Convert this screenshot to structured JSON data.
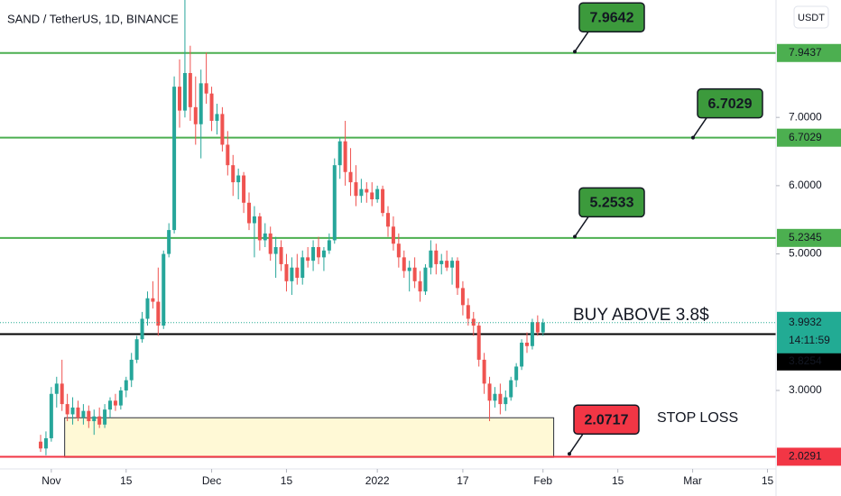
{
  "chart_data": {
    "type": "candlestick",
    "title": "SAND / TetherUS, 1D, BINANCE",
    "currency": "USDT",
    "x": [
      -2,
      -1,
      0,
      1,
      2,
      3,
      4,
      5,
      6,
      7,
      8,
      9,
      10,
      11,
      12,
      13,
      14,
      15,
      16,
      17,
      18,
      19,
      20,
      21,
      22,
      23,
      24,
      25,
      26,
      27,
      28,
      29,
      30,
      31,
      32,
      33,
      34,
      35,
      36,
      37,
      38,
      39,
      40,
      41,
      42,
      43,
      44,
      45,
      46,
      47,
      48,
      49,
      50,
      51,
      52,
      53,
      54,
      55,
      56,
      57,
      58,
      59,
      60,
      61,
      62,
      63,
      64,
      65,
      66,
      67,
      68,
      69,
      70,
      71,
      72,
      73,
      74,
      75,
      76,
      77,
      78,
      79,
      80,
      81,
      82,
      83,
      84,
      85,
      86,
      87,
      88,
      89,
      90,
      91,
      92
    ],
    "open": [
      2.25,
      2.15,
      2.3,
      2.95,
      3.1,
      2.8,
      2.65,
      2.75,
      2.6,
      2.7,
      2.55,
      2.62,
      2.5,
      2.72,
      2.85,
      2.78,
      3.0,
      3.15,
      3.45,
      3.75,
      4.05,
      4.35,
      4.3,
      3.95,
      5.0,
      5.35,
      7.45,
      7.1,
      7.65,
      7.15,
      6.9,
      7.5,
      7.35,
      6.95,
      7.05,
      6.6,
      6.3,
      6.05,
      6.15,
      5.75,
      5.45,
      5.55,
      5.2,
      5.3,
      5.0,
      5.1,
      4.85,
      4.6,
      4.8,
      4.65,
      4.95,
      4.9,
      5.1,
      4.95,
      5.05,
      5.2,
      6.3,
      6.65,
      6.2,
      6.05,
      5.85,
      5.95,
      5.9,
      5.8,
      5.95,
      5.6,
      5.4,
      5.15,
      4.95,
      4.75,
      4.8,
      4.6,
      4.45,
      4.8,
      5.05,
      4.85,
      4.9,
      4.8,
      4.9,
      4.5,
      4.25,
      4.05,
      3.95,
      3.45,
      3.1,
      2.85,
      2.95,
      2.8,
      2.9,
      3.15,
      3.35,
      3.7,
      3.65,
      4.0,
      3.85
    ],
    "high": [
      2.35,
      2.4,
      3.05,
      3.2,
      3.45,
      2.95,
      2.9,
      2.85,
      2.8,
      2.78,
      2.72,
      2.75,
      2.8,
      2.9,
      2.95,
      3.05,
      3.2,
      3.55,
      3.8,
      4.15,
      4.45,
      4.6,
      4.8,
      5.05,
      5.45,
      7.6,
      7.85,
      8.72,
      8.05,
      7.6,
      7.7,
      7.95,
      7.45,
      7.2,
      7.15,
      6.8,
      6.45,
      6.25,
      6.2,
      5.9,
      5.7,
      5.6,
      5.45,
      5.4,
      5.25,
      5.2,
      5.0,
      4.95,
      5.0,
      5.05,
      5.1,
      5.2,
      5.25,
      5.1,
      5.3,
      6.4,
      6.7,
      6.95,
      6.55,
      6.3,
      6.1,
      6.05,
      6.05,
      6.0,
      6.0,
      5.7,
      5.55,
      5.3,
      5.05,
      4.9,
      4.95,
      4.75,
      4.85,
      5.2,
      5.15,
      5.0,
      5.05,
      4.95,
      4.95,
      4.6,
      4.35,
      4.15,
      4.0,
      3.55,
      3.2,
      3.05,
      3.1,
      3.0,
      3.2,
      3.4,
      3.75,
      3.85,
      4.05,
      4.1,
      4.05
    ],
    "low": [
      2.1,
      2.05,
      2.25,
      2.75,
      2.7,
      2.55,
      2.5,
      2.55,
      2.5,
      2.45,
      2.35,
      2.45,
      2.45,
      2.6,
      2.7,
      2.72,
      2.9,
      3.05,
      3.4,
      3.7,
      3.95,
      4.2,
      3.8,
      3.9,
      4.95,
      5.3,
      6.85,
      7.0,
      6.95,
      6.6,
      6.4,
      7.2,
      6.8,
      6.75,
      6.5,
      6.15,
      5.85,
      5.8,
      5.6,
      5.35,
      4.95,
      5.05,
      5.1,
      4.9,
      4.65,
      4.75,
      4.45,
      4.4,
      4.55,
      4.55,
      4.8,
      4.75,
      4.85,
      4.75,
      5.0,
      5.15,
      6.1,
      6.0,
      5.85,
      5.7,
      5.75,
      5.75,
      5.7,
      5.75,
      5.55,
      5.25,
      5.05,
      4.8,
      4.65,
      4.45,
      4.5,
      4.3,
      4.4,
      4.7,
      4.7,
      4.7,
      4.75,
      4.55,
      4.4,
      4.1,
      3.95,
      3.8,
      3.35,
      2.95,
      2.55,
      2.75,
      2.65,
      2.7,
      2.85,
      3.05,
      3.3,
      3.55,
      3.6,
      3.8,
      3.8
    ],
    "close": [
      2.15,
      2.3,
      2.95,
      3.1,
      2.8,
      2.65,
      2.75,
      2.6,
      2.7,
      2.55,
      2.62,
      2.5,
      2.72,
      2.85,
      2.78,
      3.0,
      3.15,
      3.45,
      3.75,
      4.05,
      4.35,
      4.3,
      3.95,
      5.0,
      5.35,
      7.45,
      7.1,
      7.65,
      7.15,
      6.9,
      7.5,
      7.35,
      6.95,
      7.05,
      6.6,
      6.3,
      6.05,
      6.15,
      5.75,
      5.45,
      5.55,
      5.2,
      5.3,
      5.0,
      5.1,
      4.85,
      4.6,
      4.8,
      4.65,
      4.95,
      4.9,
      5.1,
      4.95,
      5.05,
      5.2,
      6.3,
      6.65,
      6.2,
      6.05,
      5.85,
      5.95,
      5.9,
      5.8,
      5.95,
      5.6,
      5.4,
      5.15,
      4.95,
      4.75,
      4.8,
      4.6,
      4.45,
      4.8,
      5.05,
      4.85,
      4.9,
      4.8,
      4.9,
      4.5,
      4.25,
      4.05,
      3.95,
      3.45,
      3.1,
      2.85,
      2.95,
      2.8,
      2.9,
      3.15,
      3.35,
      3.7,
      3.65,
      4.0,
      3.85,
      3.9932
    ],
    "up_color": "#26a69a",
    "down_color": "#ef5350",
    "xlim": [
      -9.6,
      135.6
    ],
    "xticks": [
      {
        "value": 0,
        "label": "Nov"
      },
      {
        "value": 14,
        "label": "15"
      },
      {
        "value": 30,
        "label": "Dec"
      },
      {
        "value": 44,
        "label": "15"
      },
      {
        "value": 61,
        "label": "2022"
      },
      {
        "value": 77,
        "label": "17"
      },
      {
        "value": 92,
        "label": "Feb"
      },
      {
        "value": 106,
        "label": "15"
      },
      {
        "value": 120,
        "label": "Mar"
      },
      {
        "value": 134,
        "label": "15"
      }
    ],
    "ylim": [
      1.85,
      8.72
    ],
    "yticks": [
      {
        "value": 3,
        "label": "3.0000"
      },
      {
        "value": 5,
        "label": "5.0000"
      },
      {
        "value": 6,
        "label": "6.0000"
      },
      {
        "value": 7,
        "label": "7.0000"
      }
    ],
    "levels": [
      {
        "value": 7.9437,
        "color": "#4caf50"
      },
      {
        "value": 6.7029,
        "color": "#4caf50"
      },
      {
        "value": 5.2345,
        "color": "#4caf50"
      },
      {
        "value": 3.8254,
        "color": "#000000"
      },
      {
        "value": 2.0291,
        "color": "#f23645"
      }
    ],
    "last_price": 3.9932,
    "last_color": "#22ab94",
    "countdown": "14:11:59",
    "callouts": [
      {
        "value": 7.9642,
        "color": "#3c9a3c"
      },
      {
        "value": 6.7029,
        "color": "#3c9a3c"
      },
      {
        "value": 5.2533,
        "color": "#3c9a3c"
      },
      {
        "value": 2.0717,
        "color": "#f23645"
      }
    ],
    "annotations": [
      "BUY ABOVE  3.8$",
      "STOP LOSS"
    ],
    "zone": {
      "x": [
        2.5,
        94
      ],
      "y": [
        2.02,
        2.6
      ]
    }
  }
}
